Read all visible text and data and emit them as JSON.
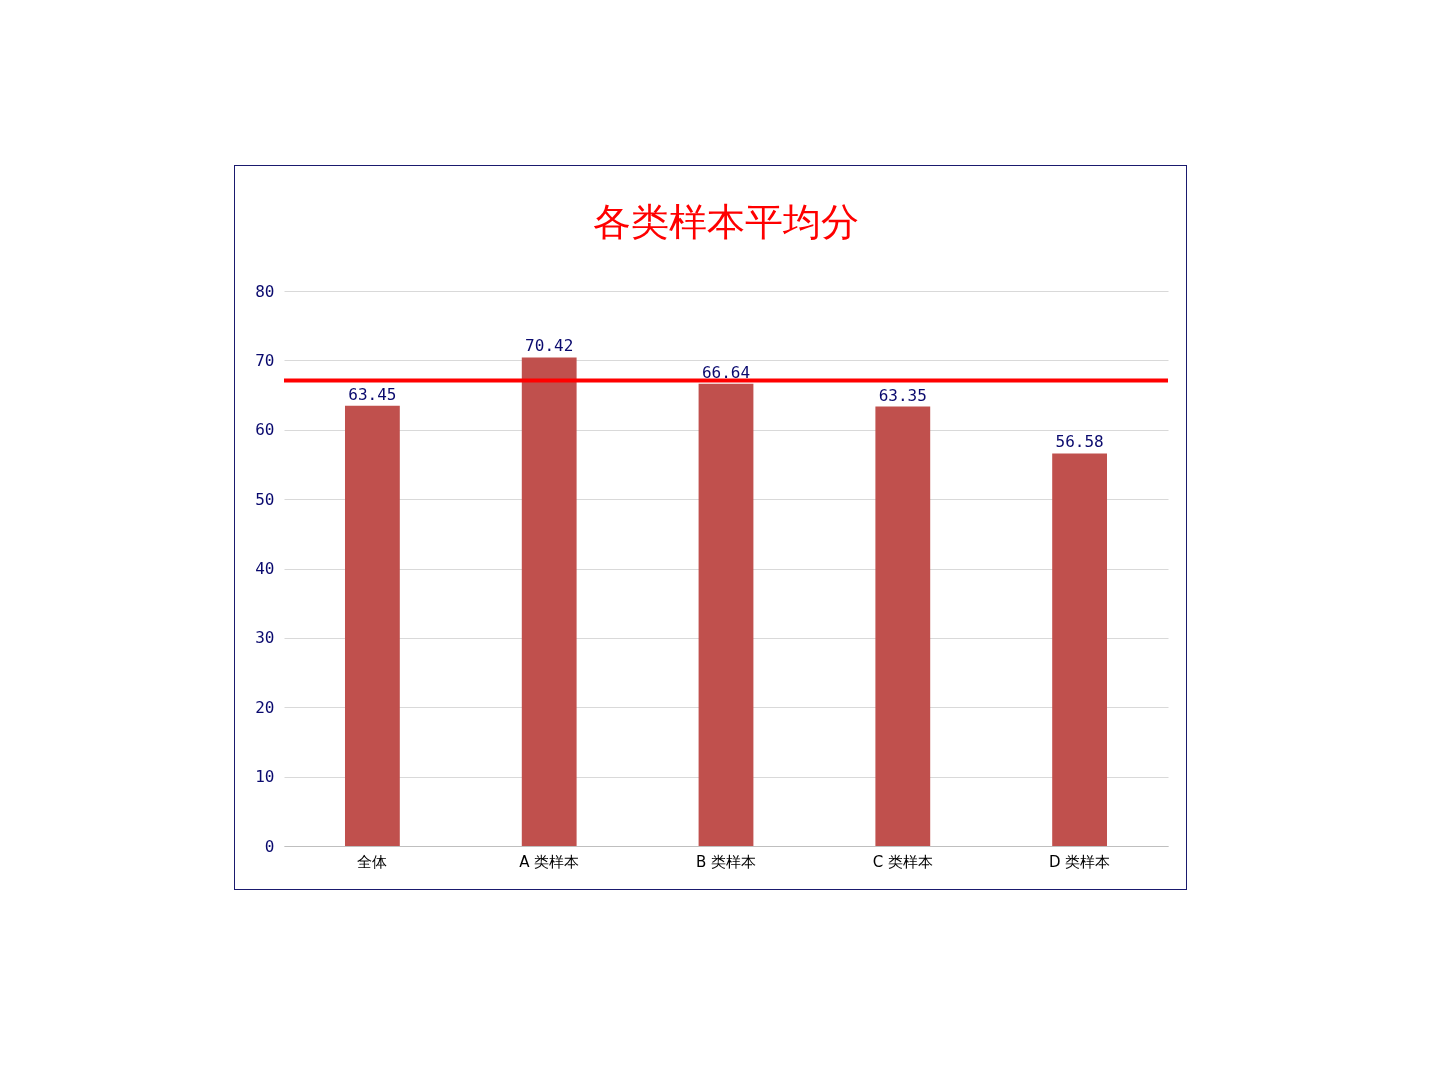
{
  "chart_data": {
    "type": "bar",
    "title": "各类样本平均分",
    "categories": [
      "全体",
      "A 类样本",
      "B 类样本",
      "C 类样本",
      "D 类样本"
    ],
    "values": [
      63.45,
      70.42,
      66.64,
      63.35,
      56.58
    ],
    "color": "#c0504d",
    "ylim": [
      0,
      80
    ],
    "yticks": [
      0,
      10,
      20,
      30,
      40,
      50,
      60,
      70,
      80
    ],
    "grid": "y",
    "data_labels": true,
    "ref_lines": [
      {
        "axis": "y",
        "value": 67.1,
        "color": "#ff0000",
        "line_style": "solid"
      }
    ]
  }
}
